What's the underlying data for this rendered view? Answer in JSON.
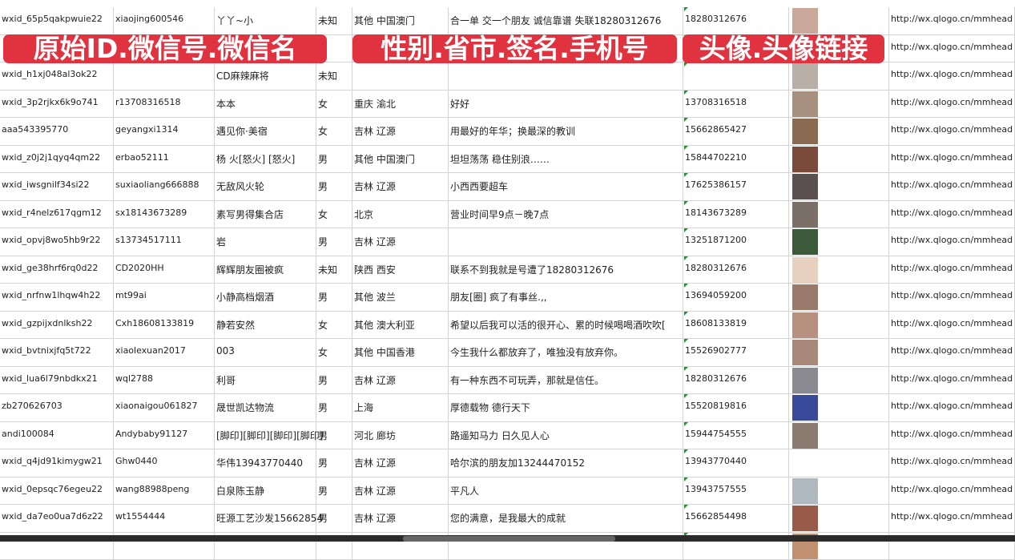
{
  "overlays": [
    "原始ID.微信号.微信名",
    "性别.省市.签名.手机号",
    "头像.头像链接"
  ],
  "rows": [
    {
      "id": "wxid_65p5qakpwuie22",
      "wx": "xiaojing600546",
      "name": "丫丫~小",
      "sex": "未知",
      "region": "其他 中国澳门",
      "sign": "合一单 交一个朋友 诚信靠谱 失联18280312676",
      "phone": "18280312676",
      "avatar": "#c9a89a",
      "link": "http://wx.qlogo.cn/mmhead"
    },
    {
      "id": "",
      "wx": "",
      "name": "",
      "sex": "",
      "region": "",
      "sign": "",
      "phone": "",
      "avatar": "#6a7fa8",
      "link": "http://wx.qlogo.cn/mmhead"
    },
    {
      "id": "wxid_h1xj048al3ok22",
      "wx": "",
      "name": "CD麻辣麻将",
      "sex": "未知",
      "region": "",
      "sign": "",
      "phone": "",
      "avatar": "#b8b0a8",
      "link": "http://wx.qlogo.cn/mmhead"
    },
    {
      "id": "wxid_3p2rjkx6k9o741",
      "wx": "r13708316518",
      "name": "本本",
      "sex": "女",
      "region": "重庆 渝北",
      "sign": "好好",
      "phone": "13708316518",
      "avatar": "#a89080",
      "link": "http://wx.qlogo.cn/mmhead"
    },
    {
      "id": "aaa543395770",
      "wx": "geyangxi1314",
      "name": "遇见你·美宿",
      "sex": "女",
      "region": "吉林 辽源",
      "sign": "用最好的年华；换最深的教训",
      "phone": "15662865427",
      "avatar": "#8a6a50",
      "link": "http://wx.qlogo.cn/mmhead"
    },
    {
      "id": "wxid_z0j2j1qyq4qm22",
      "wx": "erbao52111",
      "name": "杨 火[怒火] [怒火]",
      "sex": "男",
      "region": "其他 中国澳门",
      "sign": "坦坦荡荡 稳住别浪……",
      "phone": "15844702210",
      "avatar": "#7a4a3a",
      "link": "http://wx.qlogo.cn/mmhead"
    },
    {
      "id": "wxid_iwsgnilf34si22",
      "wx": "suxiaoliang666888",
      "name": "无敌风火轮",
      "sex": "男",
      "region": "吉林 辽源",
      "sign": "小西西要超车",
      "phone": "17625386157",
      "avatar": "#5a5050",
      "link": "http://wx.qlogo.cn/mmhead"
    },
    {
      "id": "wxid_r4nelz617qgm12",
      "wx": "sx18143673289",
      "name": "素写男得集合店",
      "sex": "女",
      "region": "北京",
      "sign": "营业时间早9点－晚7点",
      "phone": "18143673289",
      "avatar": "#7a7068",
      "link": "http://wx.qlogo.cn/mmhead"
    },
    {
      "id": "wxid_opvj8wo5hb9r22",
      "wx": "s13734517111",
      "name": "岩",
      "sex": "男",
      "region": "吉林 辽源",
      "sign": "",
      "phone": "13251871200",
      "avatar": "#3a5a3a",
      "link": "http://wx.qlogo.cn/mmhead"
    },
    {
      "id": "wxid_ge38hrf6rq0d22",
      "wx": "CD2020HH",
      "name": "辉辉朋友圈被疯",
      "sex": "未知",
      "region": "陕西 西安",
      "sign": "联系不到我就是号遭了18280312676",
      "phone": "18280312676",
      "avatar": "#e8d0c0",
      "link": "http://wx.qlogo.cn/mmhead"
    },
    {
      "id": "wxid_nrfnw1lhqw4h22",
      "wx": "mt99ai",
      "name": "小静高档烟酒",
      "sex": "男",
      "region": "其他 波兰",
      "sign": "朋友[圈] 疯了有事丝.,,",
      "phone": "13694059200",
      "avatar": "#9a7a6a",
      "link": "http://wx.qlogo.cn/mmhead"
    },
    {
      "id": "wxid_gzpijxdnlksh22",
      "wx": "Cxh18608133819",
      "name": "静若安然",
      "sex": "女",
      "region": "其他 澳大利亚",
      "sign": "希望以后我可以活的很开心、累的时候喝喝酒吹吹[",
      "phone": "18608133819",
      "avatar": "#b89080",
      "link": "http://wx.qlogo.cn/mmhead"
    },
    {
      "id": "wxid_bvtnixjfq5t722",
      "wx": "xiaolexuan2017",
      "name": "003",
      "sex": "女",
      "region": "其他 中国香港",
      "sign": "今生我什么都放弃了，唯独没有放弃你。",
      "phone": "15526902777",
      "avatar": "#a88878",
      "link": "http://wx.qlogo.cn/mmhead"
    },
    {
      "id": "wxid_lua6l79nbdkx21",
      "wx": "wql2788",
      "name": "利哥",
      "sex": "男",
      "region": "吉林 辽源",
      "sign": "有一种东西不可玩弄，那就是信任。",
      "phone": "18280312676",
      "avatar": "#8a8a90",
      "link": "http://wx.qlogo.cn/mmhead"
    },
    {
      "id": "zb270626703",
      "wx": "xiaonaigou061827",
      "name": "晟世凯达物流",
      "sex": "男",
      "region": "上海",
      "sign": "厚德载物 德行天下",
      "phone": "15520819816",
      "avatar": "#3a4a9a",
      "link": "http://wx.qlogo.cn/mmhead"
    },
    {
      "id": "andi100084",
      "wx": "Andybaby91127",
      "name": "[脚印][脚印][脚印][脚印]",
      "sex": "男",
      "region": "河北 廊坊",
      "sign": "路遥知马力 日久见人心",
      "phone": "15944754555",
      "avatar": "#8a7a70",
      "link": "http://wx.qlogo.cn/mmhead"
    },
    {
      "id": "wxid_q4jd91kimygw21",
      "wx": "Ghw0440",
      "name": "华伟13943770440",
      "sex": "男",
      "region": "吉林 辽源",
      "sign": "哈尔滨的朋友加13244470152",
      "phone": "13943770440",
      "avatar": "#ffffff",
      "link": "http://wx.qlogo.cn/mmhead"
    },
    {
      "id": "wxid_0epsqc76egeu22",
      "wx": "wang88988peng",
      "name": "白泉陈玉静",
      "sex": "男",
      "region": "吉林 辽源",
      "sign": "平凡人",
      "phone": "13943757555",
      "avatar": "#b0b8c0",
      "link": "http://wx.qlogo.cn/mmhead"
    },
    {
      "id": "wxid_da7eo0ua7d6z22",
      "wx": "wt1554444",
      "name": "旺源工艺沙发15662854",
      "sex": "男",
      "region": "吉林 辽源",
      "sign": "您的满意，是我最大的成就",
      "phone": "15662854498",
      "avatar": "#9a5a4a",
      "link": "http://wx.qlogo.cn/mmhead"
    },
    {
      "id": "",
      "wx": "",
      "name": "",
      "sex": "",
      "region": "",
      "sign": "",
      "phone": "",
      "avatar": "#c09070",
      "link": ""
    }
  ]
}
